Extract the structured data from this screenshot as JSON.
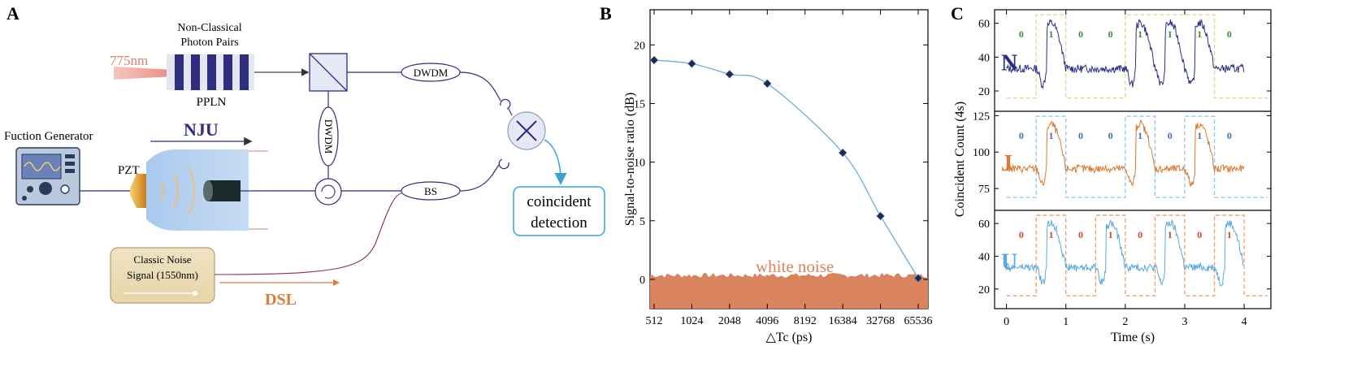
{
  "panel_labels": {
    "a": "A",
    "b": "B",
    "c": "C"
  },
  "panel_a": {
    "laser_label": "775nm",
    "photon_pairs_line1": "Non-Classical",
    "photon_pairs_line2": "Photon Pairs",
    "crystal_label": "PPLN",
    "dwdm_top": "DWDM",
    "dwdm_vertical": "DWDM",
    "bs_label": "BS",
    "function_generator": "Fuction Generator",
    "pzt_label": "PZT",
    "nju_label": "NJU",
    "noise_line1": "Classic Noise",
    "noise_line2": "Signal (1550nm)",
    "dsl_label": "DSL",
    "detection_line1": "coincident",
    "detection_line2": "detection",
    "colors": {
      "laser": "#e07b6e",
      "nju": "#2f2d7e",
      "dsl": "#e07a3a",
      "detection": "#3aa0d8",
      "noise_box": "#ecdcb4"
    }
  },
  "chart_data": [
    {
      "type": "line",
      "ylabel": "Signal-to-noise ratio (dB)",
      "xlabel": "△Tc (ps)",
      "x_scale": "log2",
      "x_ticks": [
        "512",
        "1024",
        "2048",
        "4096",
        "8192",
        "16384",
        "32768",
        "65536"
      ],
      "x": [
        512,
        1024,
        2048,
        4096,
        16384,
        32768,
        65536
      ],
      "y": [
        18.7,
        18.4,
        17.5,
        16.7,
        10.8,
        5.4,
        0.1
      ],
      "ylim": [
        -2.5,
        23
      ],
      "y_ticks": [
        0,
        5,
        10,
        15,
        20
      ],
      "annotation": "white noise",
      "colors": {
        "fit": "#6aaee0",
        "noise": "#d9845e",
        "marker": "#1f2a55",
        "annotation": "#d9845e"
      }
    },
    {
      "type": "line",
      "ylabel": "Coincident Count (4s)",
      "xlabel": "Time (s)",
      "x_ticks": [
        "0",
        "1",
        "2",
        "3",
        "4"
      ],
      "xlim": [
        -0.2,
        4.45
      ],
      "rows": [
        {
          "letter": "N",
          "color": "#2b2f84",
          "box_color": "#d9d98a",
          "bit_color": "#3a8a3a",
          "bits": [
            "0",
            "1",
            "0",
            "0",
            "1",
            "1",
            "1",
            "0"
          ],
          "ylim": [
            8,
            68
          ],
          "y_ticks": [
            "20",
            "40",
            "60"
          ]
        },
        {
          "letter": "J",
          "color": "#d97a32",
          "box_color": "#8cc3e8",
          "bit_color": "#3f6fb0",
          "bits": [
            "0",
            "1",
            "0",
            "0",
            "1",
            "0",
            "1",
            "0"
          ],
          "ylim": [
            60,
            128
          ],
          "y_ticks": [
            "75",
            "100",
            "125"
          ]
        },
        {
          "letter": "U",
          "color": "#5aa8de",
          "box_color": "#ee9a6a",
          "bit_color": "#c84a2a",
          "bits": [
            "0",
            "1",
            "0",
            "1",
            "0",
            "1",
            "0",
            "1"
          ],
          "ylim": [
            8,
            68
          ],
          "y_ticks": [
            "20",
            "40",
            "60"
          ]
        }
      ]
    }
  ]
}
